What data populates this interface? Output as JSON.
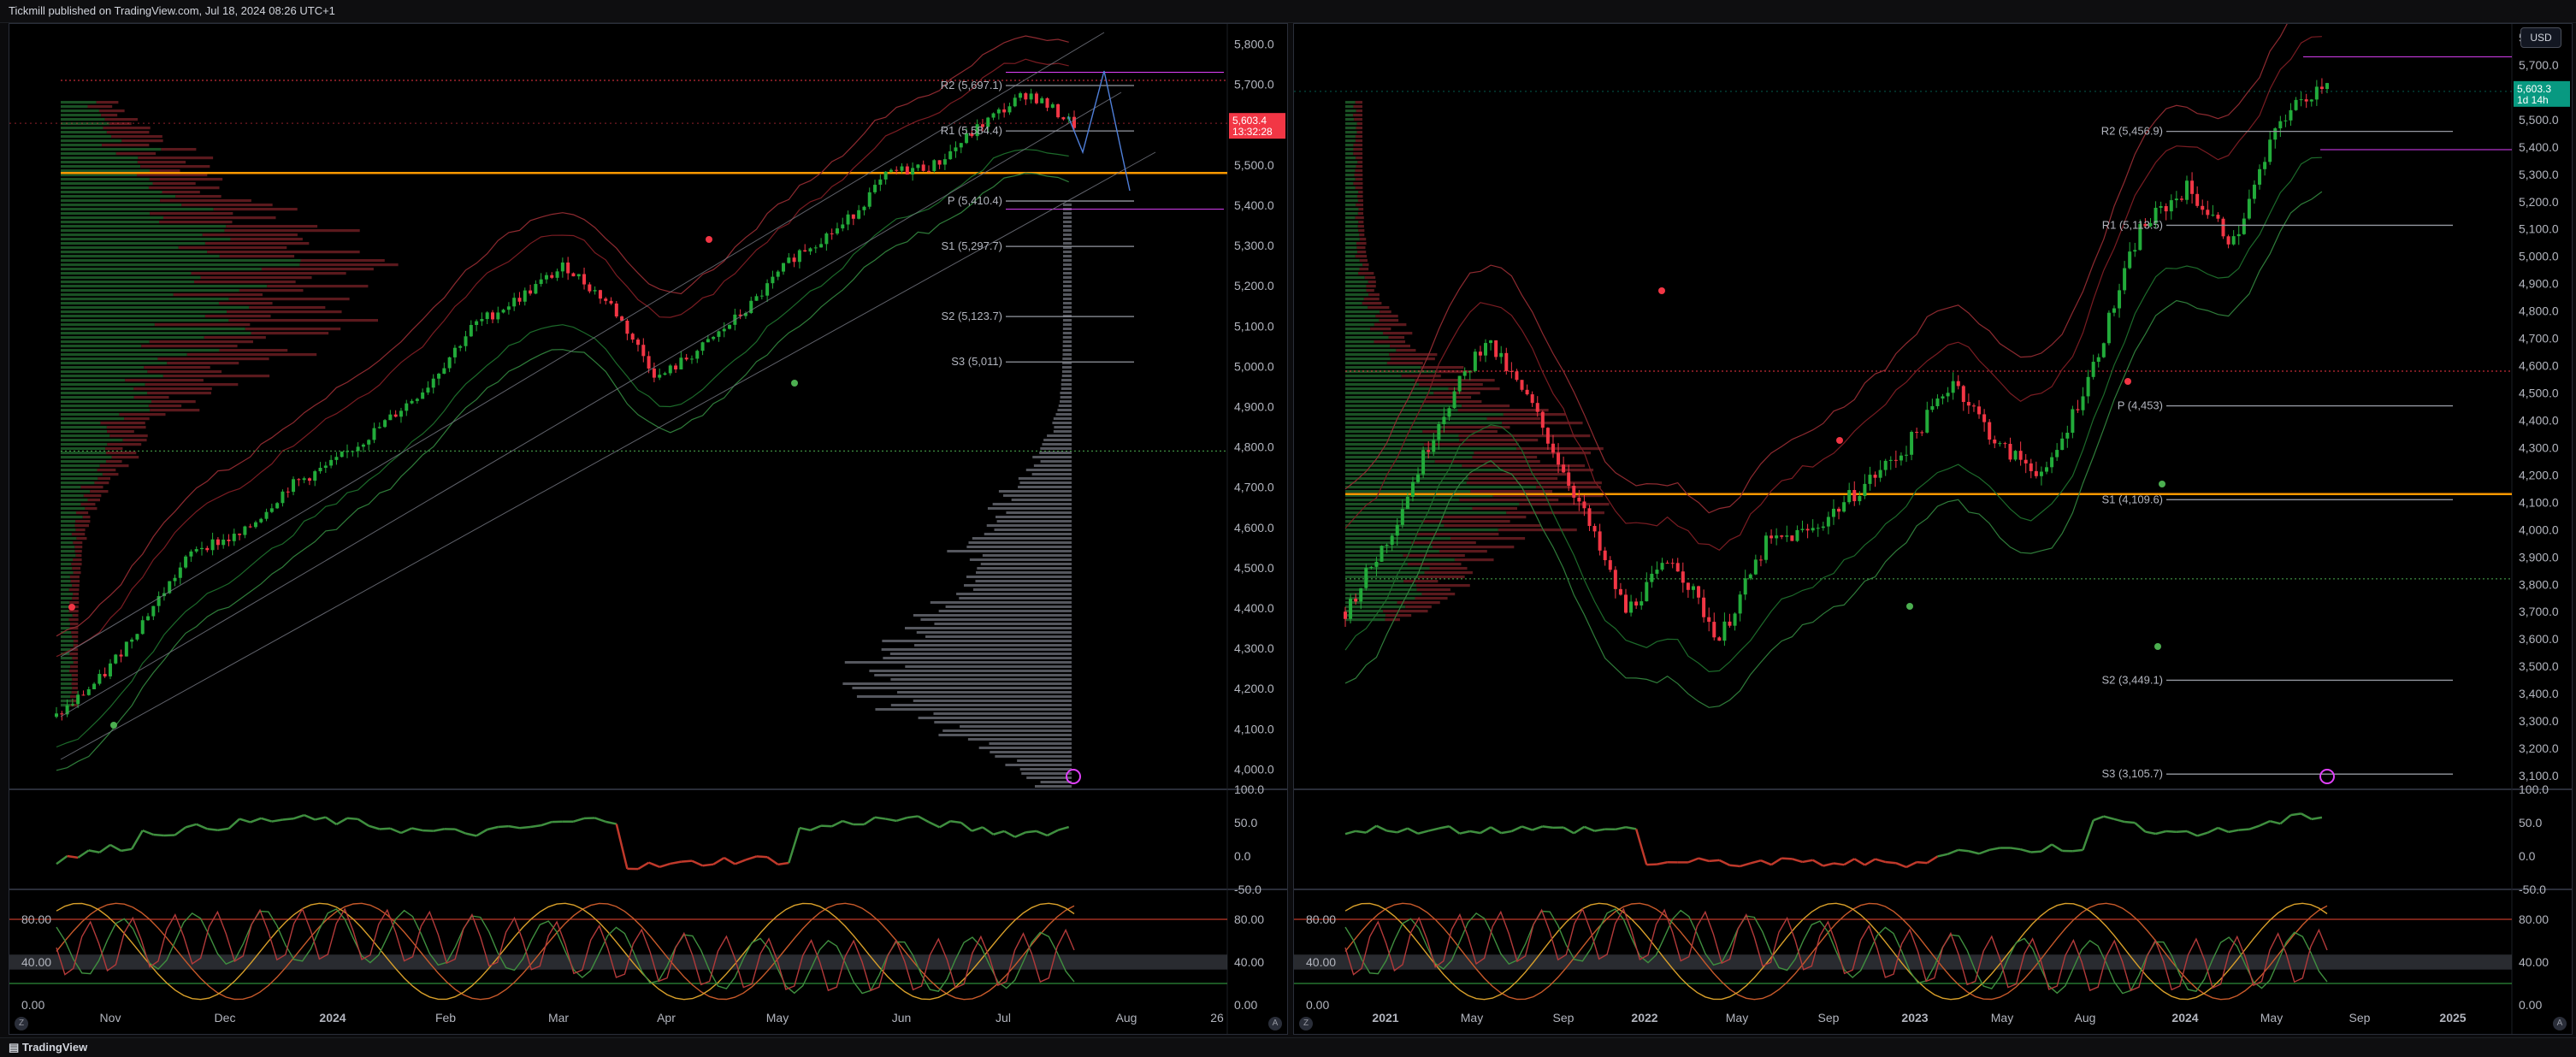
{
  "header": {
    "publisher_text": "Tickmill published on TradingView.com, Jul 18, 2024 08:26 UTC+1"
  },
  "footer": {
    "logo_text": "TradingView",
    "logo_icon": "tradingview-logo-icon"
  },
  "left": {
    "y_axis_labels": [
      "5,800.0",
      "5,700.0",
      "5,600.0",
      "5,500.0",
      "5,400.0",
      "5,300.0",
      "5,200.0",
      "5,100.0",
      "5,000.0",
      "4,900.0",
      "4,800.0",
      "4,700.0",
      "4,600.0",
      "4,500.0",
      "4,400.0",
      "4,300.0",
      "4,200.0",
      "4,100.0",
      "4,000.0"
    ],
    "y_values": [
      5800,
      5700,
      5600,
      5500,
      5400,
      5300,
      5200,
      5100,
      5000,
      4900,
      4800,
      4700,
      4600,
      4500,
      4400,
      4300,
      4200,
      4100,
      4000
    ],
    "x_axis_labels": [
      "Nov",
      "Dec",
      "2024",
      "Feb",
      "Mar",
      "Apr",
      "May",
      "Jun",
      "Jul",
      "Aug",
      "26"
    ],
    "price_tag": {
      "price": "5,603.4",
      "countdown": "13:32:28",
      "color": "#f23645"
    },
    "pivots": [
      {
        "label": "R2 (5,697.1)",
        "value": 5697.1
      },
      {
        "label": "R1 (5,584.4)",
        "value": 5584.4
      },
      {
        "label": "P (5,410.4)",
        "value": 5410.4
      },
      {
        "label": "S1 (5,297.7)",
        "value": 5297.7
      },
      {
        "label": "S2 (5,123.7)",
        "value": 5123.7
      },
      {
        "label": "S3 (5,011)",
        "value": 5011
      }
    ],
    "rsi_axis": [
      "100.0",
      "50.0",
      "0.0",
      "-50.0"
    ],
    "stoch_axis_left": [
      "80.00",
      "40.00",
      "0.00"
    ],
    "stoch_axis_right": [
      "80.00",
      "40.00",
      "0.00"
    ]
  },
  "right": {
    "currency_button": "USD",
    "y_axis_labels": [
      "5,800.0",
      "5,700.0",
      "5,600.0",
      "5,500.0",
      "5,400.0",
      "5,300.0",
      "5,200.0",
      "5,100.0",
      "5,000.0",
      "4,900.0",
      "4,800.0",
      "4,700.0",
      "4,600.0",
      "4,500.0",
      "4,400.0",
      "4,300.0",
      "4,200.0",
      "4,100.0",
      "4,000.0",
      "3,900.0",
      "3,800.0",
      "3,700.0",
      "3,600.0",
      "3,500.0",
      "3,400.0",
      "3,300.0",
      "3,200.0",
      "3,100.0"
    ],
    "y_values": [
      5800,
      5700,
      5600,
      5500,
      5400,
      5300,
      5200,
      5100,
      5000,
      4900,
      4800,
      4700,
      4600,
      4500,
      4400,
      4300,
      4200,
      4100,
      4000,
      3900,
      3800,
      3700,
      3600,
      3500,
      3400,
      3300,
      3200,
      3100
    ],
    "x_axis_labels": [
      "2021",
      "May",
      "Sep",
      "2022",
      "May",
      "Sep",
      "2023",
      "May",
      "Aug",
      "2024",
      "May",
      "Sep",
      "2025"
    ],
    "price_tag": {
      "price": "5,603.3",
      "countdown": "1d 14h",
      "color": "#089981"
    },
    "pivots": [
      {
        "label": "R2 (5,456.9)",
        "value": 5456.9
      },
      {
        "label": "R1 (5,113.5)",
        "value": 5113.5
      },
      {
        "label": "P (4,453)",
        "value": 4453
      },
      {
        "label": "S1 (4,109.6)",
        "value": 4109.6
      },
      {
        "label": "S2 (3,449.1)",
        "value": 3449.1
      },
      {
        "label": "S3 (3,105.7)",
        "value": 3105.7
      }
    ],
    "rsi_axis": [
      "100.0",
      "50.0",
      "0.0",
      "-50.0"
    ],
    "stoch_axis_left": [
      "80.00",
      "40.00",
      "0.00"
    ],
    "stoch_axis_right": [
      "80.00",
      "40.00",
      "0.00"
    ]
  },
  "colors": {
    "bull": "#22ab3a",
    "bear": "#f23645",
    "pivot_line": "#9598a1",
    "poc": "#ff9800",
    "accent_purple": "#e040fb",
    "trend_line": "#787b86"
  },
  "chart_data": [
    {
      "type": "candlestick",
      "title": "",
      "timeframe": "daily",
      "x_labels": [
        "Nov",
        "Dec",
        "2024",
        "Feb",
        "Mar",
        "Apr",
        "May",
        "Jun",
        "Jul",
        "Aug",
        "26"
      ],
      "ylim": [
        3950,
        5850
      ],
      "close_path": [
        4130,
        4230,
        4390,
        4550,
        4580,
        4700,
        4760,
        4850,
        4950,
        5100,
        5170,
        5250,
        5150,
        4970,
        5050,
        5150,
        5280,
        5350,
        5480,
        5500,
        5600,
        5680,
        5600
      ],
      "last_price": 5603.4,
      "pivots": {
        "R2": 5697.1,
        "R1": 5584.4,
        "P": 5410.4,
        "S1": 5297.7,
        "S2": 5123.7,
        "S3": 5011
      }
    },
    {
      "type": "candlestick",
      "title": "",
      "timeframe": "weekly",
      "x_labels": [
        "2021",
        "May",
        "Sep",
        "2022",
        "May",
        "Sep",
        "2023",
        "May",
        "Aug",
        "2024",
        "May",
        "Sep",
        "2025"
      ],
      "ylim": [
        3050,
        5850
      ],
      "close_path": [
        3700,
        4000,
        4400,
        4700,
        4450,
        4100,
        3700,
        3900,
        3600,
        3950,
        4000,
        4150,
        4300,
        4550,
        4300,
        4200,
        4600,
        5100,
        5250,
        5050,
        5500,
        5650
      ],
      "last_price": 5603.3,
      "pivots": {
        "R2": 5456.9,
        "R1": 5113.5,
        "P": 4453,
        "S1": 4109.6,
        "S2": 3449.1,
        "S3": 3105.7
      }
    }
  ]
}
